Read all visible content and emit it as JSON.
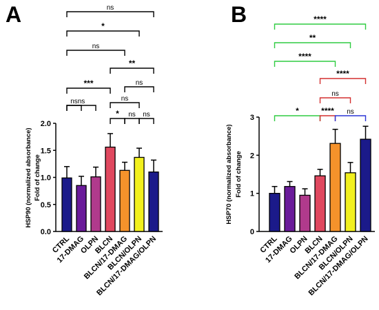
{
  "chart_data": [
    {
      "panel_label": "A",
      "type": "bar",
      "ylabel_lines": [
        "HSP90 (normalized absorbance)",
        "Fold of change"
      ],
      "ylim": [
        0,
        2.0
      ],
      "yticks": [
        "0.0",
        "0.5",
        "1.0",
        "1.5",
        "2.0"
      ],
      "ytick_values": [
        0,
        0.5,
        1.0,
        1.5,
        2.0
      ],
      "categories": [
        "CTRL",
        "17-DMAG",
        "OLPN",
        "BLCN",
        "BLCN/17-DMAG",
        "BLCN/OLPN",
        "BLCN/17-DMAG/OLPN"
      ],
      "values": [
        0.99,
        0.85,
        1.01,
        1.56,
        1.13,
        1.37,
        1.1
      ],
      "errors": [
        0.21,
        0.17,
        0.18,
        0.25,
        0.15,
        0.17,
        0.22
      ],
      "colors": [
        "#1b1a8a",
        "#6a1b9a",
        "#b03a8c",
        "#e0485f",
        "#f5922b",
        "#f2f01e",
        "#1b1a8a"
      ],
      "significance": [
        {
          "from": 0,
          "to": 6,
          "label": "ns",
          "color": "#000000"
        },
        {
          "from": 0,
          "to": 5,
          "label": "*",
          "color": "#000000"
        },
        {
          "from": 0,
          "to": 4,
          "label": "ns",
          "color": "#000000"
        },
        {
          "from": 3,
          "to": 6,
          "label": "**",
          "color": "#000000"
        },
        {
          "from": 0,
          "to": 3,
          "label": "***",
          "color": "#000000"
        },
        {
          "from": 4,
          "to": 6,
          "label": "ns",
          "color": "#000000"
        },
        {
          "from": 0,
          "to": 1,
          "label": "ns",
          "color": "#000000"
        },
        {
          "from": 0,
          "to": 2,
          "label": "ns",
          "color": "#000000"
        },
        {
          "from": 3,
          "to": 5,
          "label": "ns",
          "color": "#000000"
        },
        {
          "from": 3,
          "to": 4,
          "label": "*",
          "color": "#000000"
        },
        {
          "from": 4,
          "to": 5,
          "label": "ns",
          "color": "#000000"
        },
        {
          "from": 5,
          "to": 6,
          "label": "ns",
          "color": "#000000"
        }
      ]
    },
    {
      "panel_label": "B",
      "type": "bar",
      "ylabel_lines": [
        "HSP70 (normalized absorbance)",
        "Fold of change"
      ],
      "ylim": [
        0,
        3
      ],
      "yticks": [
        "0",
        "1",
        "2",
        "3"
      ],
      "ytick_values": [
        0,
        1,
        2,
        3
      ],
      "categories": [
        "CTRL",
        "17-DMAG",
        "OLPN",
        "BLCN",
        "BLCN/17-DMAG",
        "BLCN/OLPN",
        "BLCN/17-DMAG/OLPN"
      ],
      "values": [
        1.0,
        1.18,
        0.95,
        1.46,
        2.31,
        1.54,
        2.42
      ],
      "errors": [
        0.18,
        0.13,
        0.17,
        0.17,
        0.37,
        0.27,
        0.34
      ],
      "colors": [
        "#1b1a8a",
        "#6a1b9a",
        "#b03a8c",
        "#e0485f",
        "#f5922b",
        "#f2f01e",
        "#1b1a8a"
      ],
      "significance": [
        {
          "from": 0,
          "to": 6,
          "label": "****",
          "color": "#2ecc40"
        },
        {
          "from": 0,
          "to": 5,
          "label": "**",
          "color": "#2ecc40"
        },
        {
          "from": 0,
          "to": 4,
          "label": "****",
          "color": "#2ecc40"
        },
        {
          "from": 3,
          "to": 6,
          "label": "****",
          "color": "#d32f2f"
        },
        {
          "from": 3,
          "to": 5,
          "label": "ns",
          "color": "#d32f2f"
        },
        {
          "from": 0,
          "to": 3,
          "label": "*",
          "color": "#2ecc40"
        },
        {
          "from": 3,
          "to": 4,
          "label": "****",
          "color": "#d32f2f"
        },
        {
          "from": 4,
          "to": 6,
          "label": "ns",
          "color": "#2a35d6"
        }
      ]
    }
  ]
}
